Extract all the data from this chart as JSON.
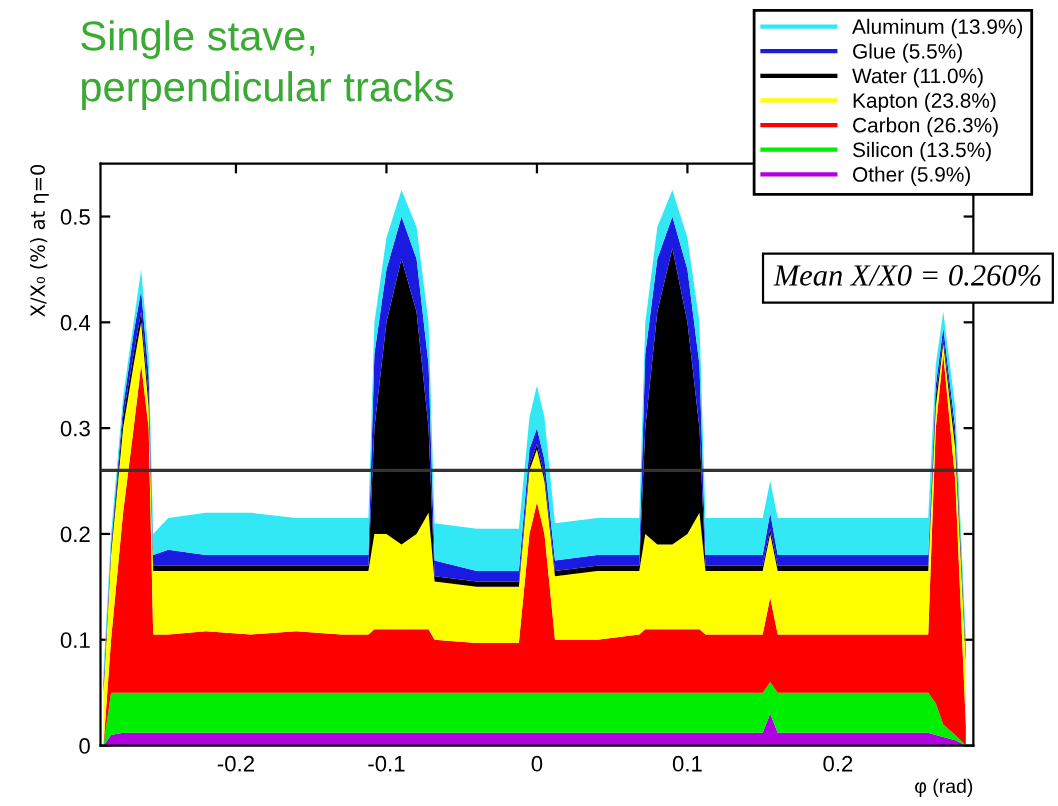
{
  "chart_data": {
    "type": "area",
    "stacked": true,
    "title": "Single stave,\nperpendicular tracks",
    "xlabel": "φ (rad)",
    "ylabel": "X/X₀ (%) at η=0",
    "annotations": [
      "Mean X/X0 = 0.260%"
    ],
    "x": [
      -0.288,
      -0.283,
      -0.275,
      -0.268,
      -0.263,
      -0.258,
      -0.255,
      -0.245,
      -0.22,
      -0.19,
      -0.16,
      -0.13,
      -0.112,
      -0.108,
      -0.1,
      -0.09,
      -0.08,
      -0.072,
      -0.068,
      -0.04,
      -0.012,
      -0.005,
      0.0,
      0.005,
      0.012,
      0.04,
      0.068,
      0.072,
      0.08,
      0.09,
      0.1,
      0.108,
      0.112,
      0.15,
      0.155,
      0.16,
      0.2,
      0.26,
      0.265,
      0.27,
      0.278,
      0.285
    ],
    "series": [
      {
        "name": "Other (5.9%)",
        "color": "#b000e0",
        "values": [
          0,
          0.01,
          0.012,
          0.012,
          0.012,
          0.012,
          0.012,
          0.012,
          0.012,
          0.012,
          0.012,
          0.012,
          0.012,
          0.012,
          0.012,
          0.012,
          0.012,
          0.012,
          0.012,
          0.012,
          0.012,
          0.012,
          0.012,
          0.012,
          0.012,
          0.012,
          0.012,
          0.012,
          0.012,
          0.012,
          0.012,
          0.012,
          0.012,
          0.012,
          0.03,
          0.012,
          0.012,
          0.012,
          0.01,
          0.008,
          0.005,
          0
        ]
      },
      {
        "name": "Silicon (13.5%)",
        "color": "#00ee00",
        "values": [
          0,
          0.04,
          0.038,
          0.038,
          0.038,
          0.038,
          0.038,
          0.038,
          0.038,
          0.038,
          0.038,
          0.038,
          0.038,
          0.038,
          0.038,
          0.038,
          0.038,
          0.038,
          0.038,
          0.038,
          0.038,
          0.038,
          0.038,
          0.038,
          0.038,
          0.038,
          0.038,
          0.038,
          0.038,
          0.038,
          0.038,
          0.038,
          0.038,
          0.038,
          0.03,
          0.038,
          0.038,
          0.038,
          0.03,
          0.012,
          0.005,
          0
        ]
      },
      {
        "name": "Carbon (26.3%)",
        "color": "#ff0000",
        "values": [
          0,
          0.05,
          0.17,
          0.25,
          0.31,
          0.25,
          0.055,
          0.055,
          0.058,
          0.055,
          0.058,
          0.055,
          0.055,
          0.06,
          0.06,
          0.06,
          0.06,
          0.06,
          0.05,
          0.047,
          0.047,
          0.15,
          0.18,
          0.15,
          0.05,
          0.05,
          0.055,
          0.06,
          0.06,
          0.06,
          0.06,
          0.06,
          0.055,
          0.055,
          0.08,
          0.055,
          0.055,
          0.055,
          0.26,
          0.35,
          0.24,
          0.02
        ]
      },
      {
        "name": "Kapton (23.8%)",
        "color": "#ffff00",
        "values": [
          0.05,
          0.08,
          0.08,
          0.06,
          0.04,
          0.02,
          0.06,
          0.06,
          0.057,
          0.06,
          0.057,
          0.06,
          0.06,
          0.09,
          0.09,
          0.08,
          0.09,
          0.11,
          0.055,
          0.053,
          0.053,
          0.06,
          0.05,
          0.05,
          0.06,
          0.065,
          0.06,
          0.09,
          0.08,
          0.08,
          0.09,
          0.11,
          0.06,
          0.06,
          0.06,
          0.06,
          0.06,
          0.06,
          0.02,
          0.01,
          0.03,
          0.06
        ]
      },
      {
        "name": "Water (11.0%)",
        "color": "#000000",
        "values": [
          0,
          0.005,
          0.01,
          0.01,
          0.01,
          0.01,
          0.005,
          0.005,
          0.005,
          0.005,
          0.005,
          0.005,
          0.005,
          0.1,
          0.2,
          0.27,
          0.21,
          0.08,
          0.005,
          0.005,
          0.005,
          0.005,
          0.005,
          0.005,
          0.005,
          0.005,
          0.005,
          0.1,
          0.22,
          0.28,
          0.2,
          0.08,
          0.005,
          0.005,
          0.005,
          0.005,
          0.005,
          0.005,
          0.01,
          0.005,
          0.01,
          0.005
        ]
      },
      {
        "name": "Glue (5.5%)",
        "color": "#1a1ae0",
        "values": [
          0.01,
          0.005,
          0.01,
          0.02,
          0.02,
          0.02,
          0.01,
          0.015,
          0.01,
          0.01,
          0.01,
          0.01,
          0.01,
          0.07,
          0.05,
          0.04,
          0.05,
          0.06,
          0.015,
          0.01,
          0.01,
          0.015,
          0.015,
          0.015,
          0.01,
          0.01,
          0.01,
          0.07,
          0.05,
          0.03,
          0.05,
          0.06,
          0.01,
          0.01,
          0.015,
          0.01,
          0.01,
          0.01,
          0.01,
          0.01,
          0.01,
          0.005
        ]
      },
      {
        "name": "Aluminum (13.9%)",
        "color": "#33e8f5",
        "values": [
          0.01,
          0.01,
          0.01,
          0.01,
          0.02,
          0.02,
          0.02,
          0.03,
          0.04,
          0.04,
          0.035,
          0.035,
          0.035,
          0.03,
          0.03,
          0.025,
          0.03,
          0.04,
          0.035,
          0.04,
          0.04,
          0.03,
          0.04,
          0.04,
          0.035,
          0.035,
          0.035,
          0.03,
          0.03,
          0.025,
          0.03,
          0.04,
          0.035,
          0.035,
          0.03,
          0.035,
          0.035,
          0.035,
          0.02,
          0.015,
          0.02,
          0.01
        ]
      }
    ],
    "xlim": [
      -0.29,
      0.29
    ],
    "ylim": [
      0,
      0.55
    ],
    "xticks": [
      -0.2,
      -0.1,
      0,
      0.1,
      0.2
    ],
    "yticks": [
      0,
      0.1,
      0.2,
      0.3,
      0.4,
      0.5
    ],
    "ref_lines": [
      {
        "axis": "y",
        "value": 0.26,
        "color": "#333333"
      }
    ],
    "legend": "top right",
    "grid": false
  }
}
